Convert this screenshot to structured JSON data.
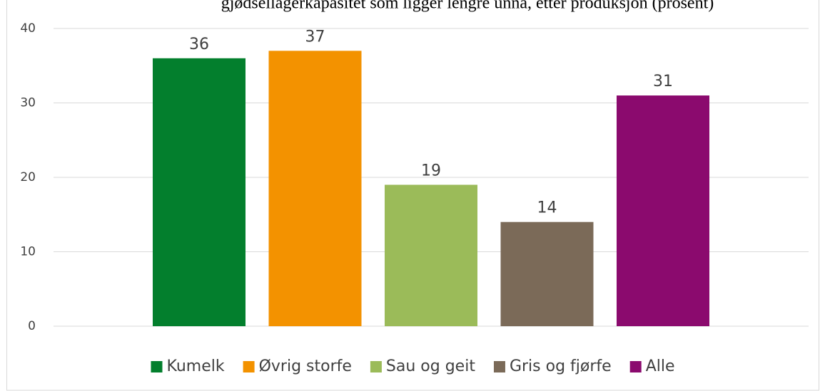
{
  "chart_data": {
    "type": "bar",
    "title": "gjødsellagerkapasitet som ligger lengre unna, etter produksjon (prosent)",
    "categories": [
      null
    ],
    "series": [
      {
        "name": "Kumelk",
        "color": "#037f2d",
        "values": [
          36
        ]
      },
      {
        "name": "Øvrig storfe",
        "color": "#f39200",
        "values": [
          37
        ]
      },
      {
        "name": "Sau og geit",
        "color": "#9bbb59",
        "values": [
          19
        ]
      },
      {
        "name": "Gris og fjørfe",
        "color": "#7b6a58",
        "values": [
          14
        ]
      },
      {
        "name": "Alle",
        "color": "#8b0a6e",
        "values": [
          31
        ]
      }
    ],
    "ylim": [
      0,
      40
    ],
    "yticks": [
      0,
      10,
      20,
      30,
      40
    ],
    "grid": true,
    "legend": "bottom"
  }
}
